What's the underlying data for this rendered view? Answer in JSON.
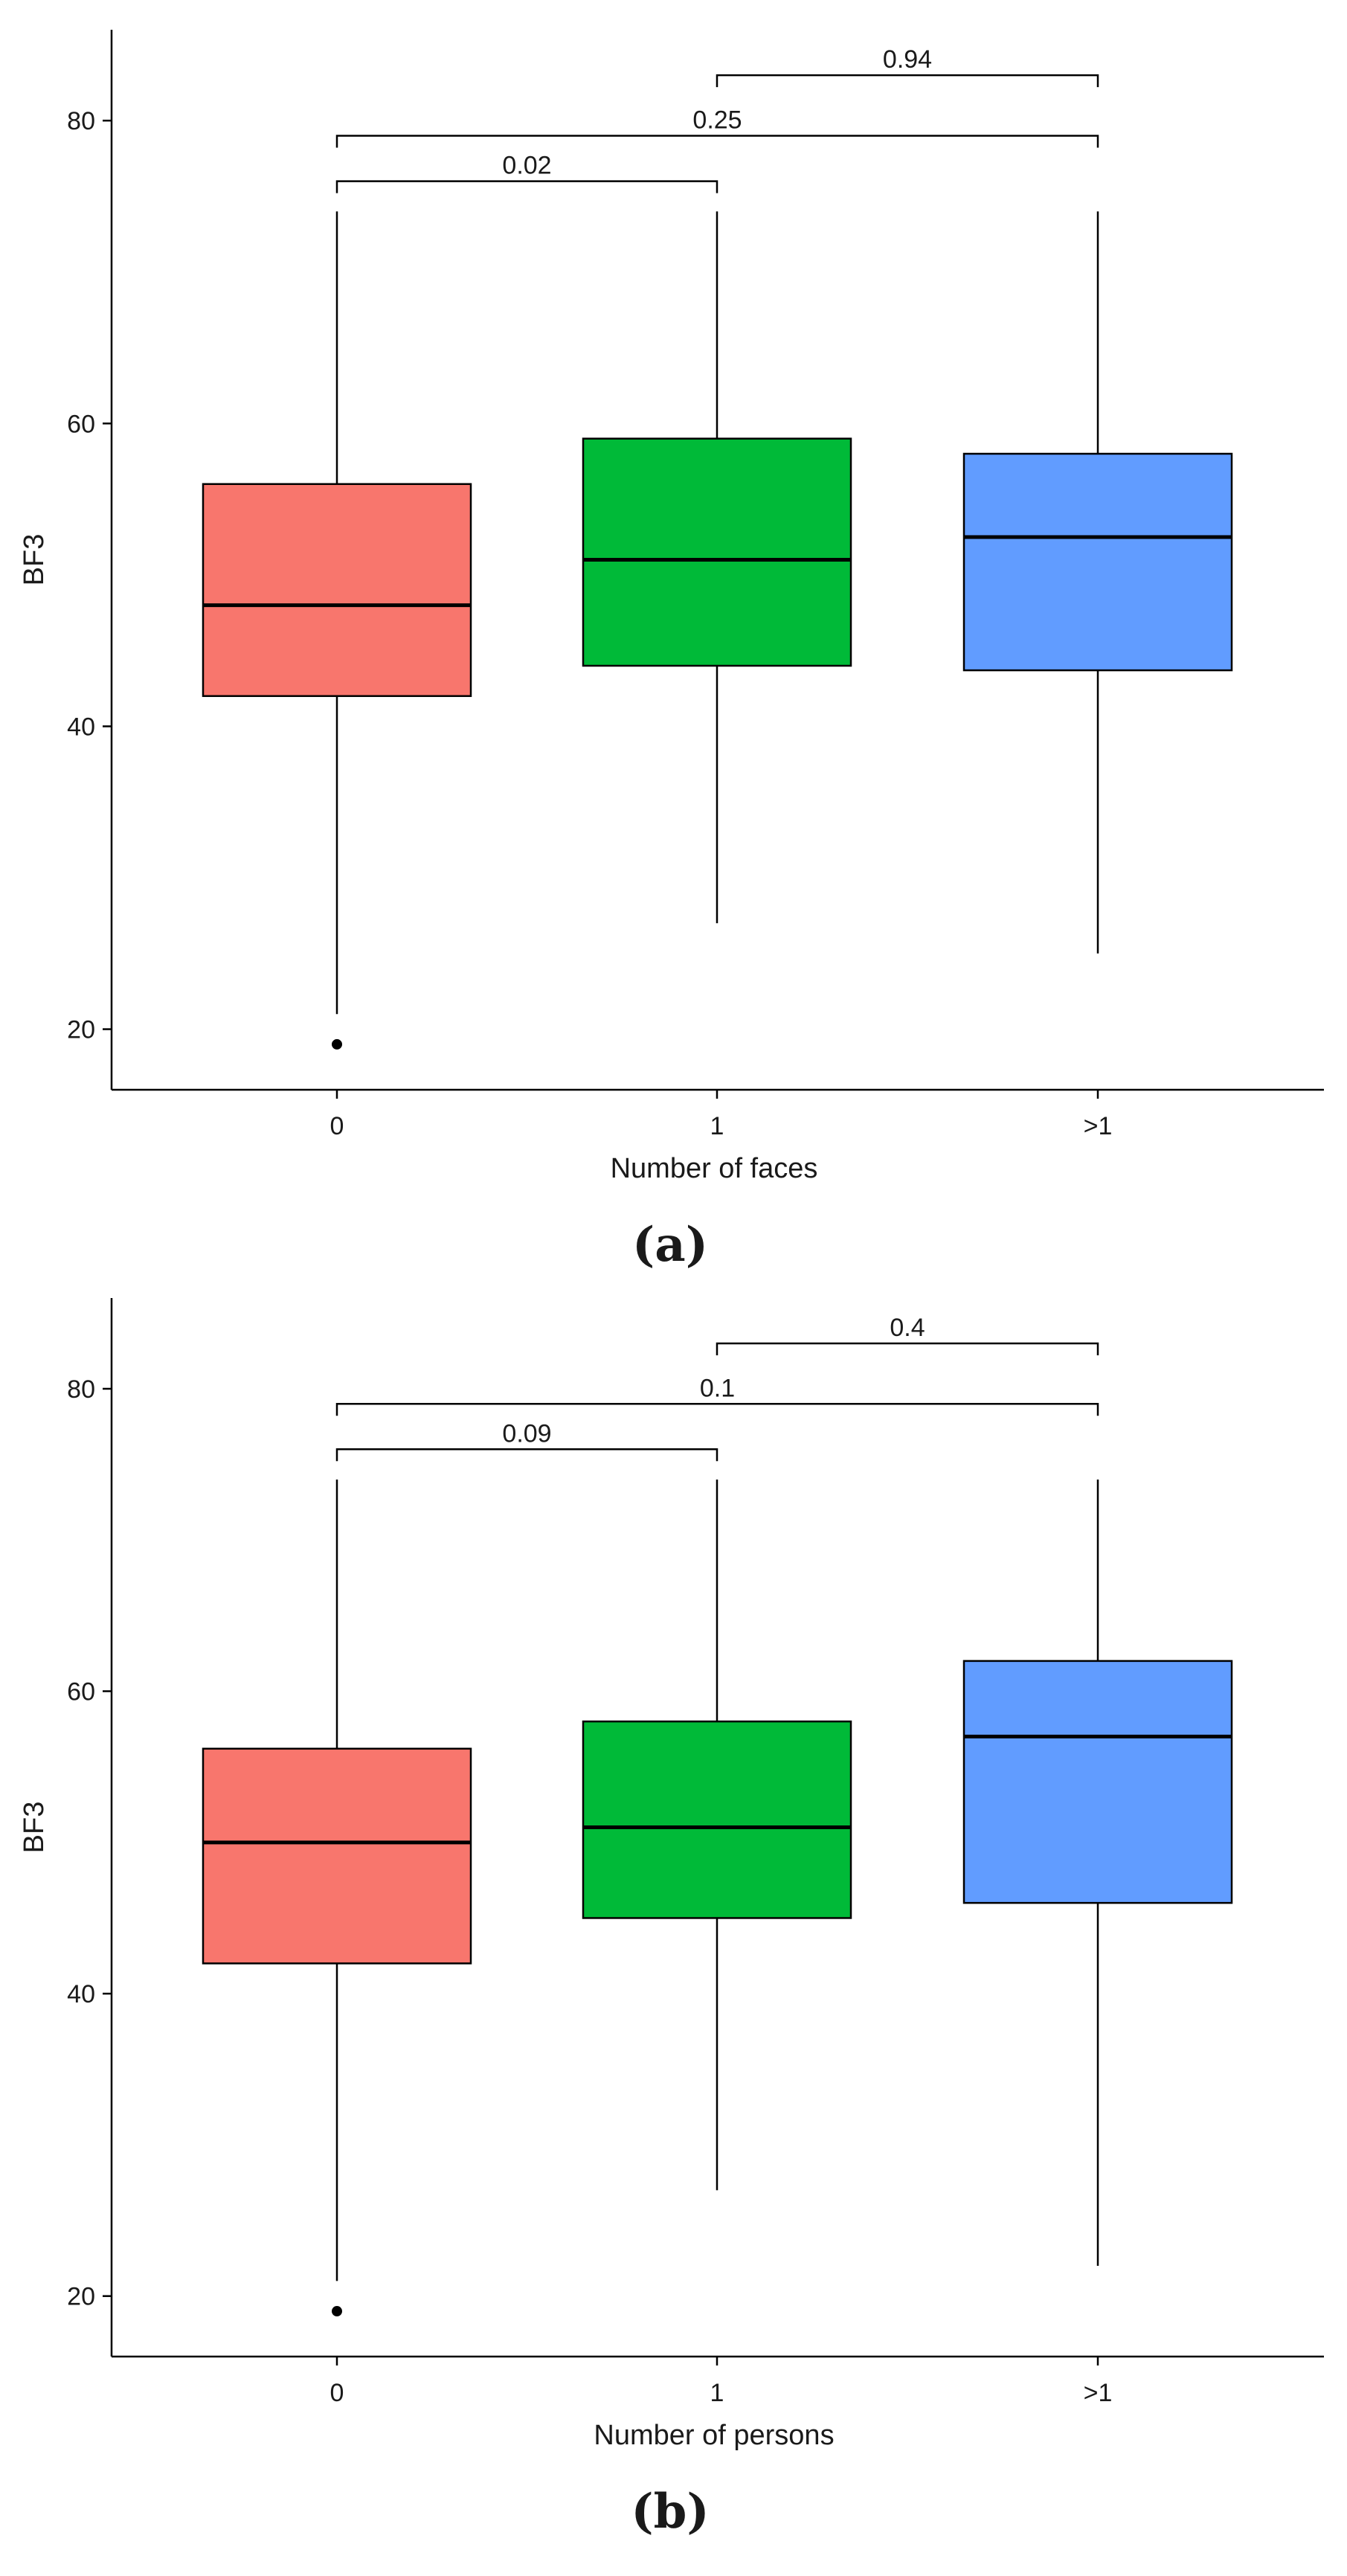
{
  "chart_data": [
    {
      "type": "box",
      "xlabel": "Number of faces",
      "ylabel": "BF3",
      "caption": "(a)",
      "ylim": [
        16,
        86
      ],
      "yticks": [
        20,
        40,
        60,
        80
      ],
      "categories": [
        "0",
        "1",
        ">1"
      ],
      "boxes": [
        {
          "category": "0",
          "min": 21,
          "q1": 42,
          "median": 48,
          "q3": 56,
          "max": 74,
          "outliers": [
            19
          ],
          "color": "#F8766D"
        },
        {
          "category": "1",
          "min": 27,
          "q1": 44,
          "median": 51,
          "q3": 59,
          "max": 74,
          "outliers": [],
          "color": "#00BA38"
        },
        {
          "category": ">1",
          "min": 25,
          "q1": 43.7,
          "median": 52.5,
          "q3": 58,
          "max": 74,
          "outliers": [],
          "color": "#619CFF"
        }
      ],
      "comparisons": [
        {
          "from": "1",
          "to": ">1",
          "p": "0.94",
          "y": 83
        },
        {
          "from": "0",
          "to": ">1",
          "p": "0.25",
          "y": 79
        },
        {
          "from": "0",
          "to": "1",
          "p": "0.02",
          "y": 76
        }
      ]
    },
    {
      "type": "box",
      "xlabel": "Number of persons",
      "ylabel": "BF3",
      "caption": "(b)",
      "ylim": [
        16,
        86
      ],
      "yticks": [
        20,
        40,
        60,
        80
      ],
      "categories": [
        "0",
        "1",
        ">1"
      ],
      "boxes": [
        {
          "category": "0",
          "min": 21,
          "q1": 42,
          "median": 50,
          "q3": 56.2,
          "max": 74,
          "outliers": [
            19
          ],
          "color": "#F8766D"
        },
        {
          "category": "1",
          "min": 27,
          "q1": 45,
          "median": 51,
          "q3": 58,
          "max": 74,
          "outliers": [],
          "color": "#00BA38"
        },
        {
          "category": ">1",
          "min": 22,
          "q1": 46,
          "median": 57,
          "q3": 62,
          "max": 74,
          "outliers": [],
          "color": "#619CFF"
        }
      ],
      "comparisons": [
        {
          "from": "1",
          "to": ">1",
          "p": "0.4",
          "y": 83
        },
        {
          "from": "0",
          "to": ">1",
          "p": "0.1",
          "y": 79
        },
        {
          "from": "0",
          "to": "1",
          "p": "0.09",
          "y": 76
        }
      ]
    }
  ]
}
